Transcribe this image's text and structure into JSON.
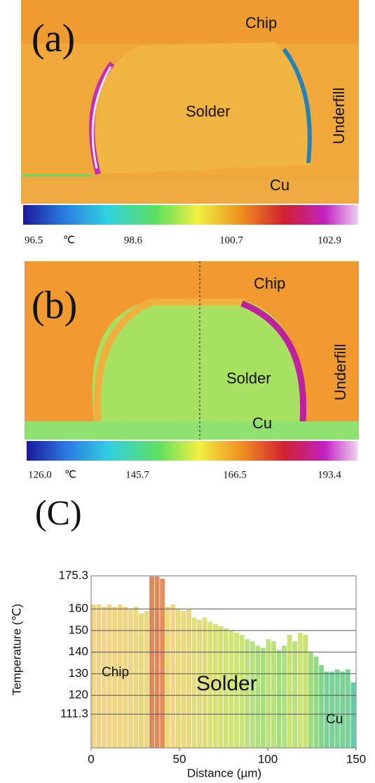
{
  "panels": [
    {
      "label": "(a)",
      "chip": "Chip",
      "solder": "Solder",
      "underfill": "Underfill",
      "cu": "Cu",
      "colorbar": [
        "96.5",
        "℃",
        "98.6",
        "100.7",
        "102.9"
      ]
    },
    {
      "label": "(b)",
      "chip": "Chip",
      "solder": "Solder",
      "underfill": "Underfill",
      "cu": "Cu",
      "colorbar": [
        "126.0",
        "℃",
        "145.7",
        "166.5",
        "193.4"
      ]
    }
  ],
  "chart_data": {
    "type": "bar",
    "title": "(C)",
    "x_label": "Distance (µm)",
    "y_label": "Temperature (℃)",
    "annotations": [
      "Chip",
      "Solder",
      "Cu"
    ],
    "x": [
      0,
      3,
      6,
      9,
      12,
      15,
      18,
      21,
      24,
      27,
      30,
      33,
      36,
      39,
      42,
      45,
      48,
      51,
      54,
      57,
      60,
      63,
      66,
      69,
      72,
      75,
      78,
      81,
      84,
      87,
      90,
      93,
      96,
      99,
      102,
      105,
      108,
      111,
      114,
      117,
      120,
      123,
      126,
      129,
      132,
      135,
      138,
      141,
      144,
      147
    ],
    "values": [
      162,
      162,
      161,
      162,
      161,
      162,
      161,
      160,
      161,
      158,
      159,
      175,
      175,
      174,
      161,
      162,
      160,
      159,
      160,
      156,
      155,
      156,
      154,
      153,
      152,
      151,
      150,
      149,
      148,
      146,
      145,
      143,
      142,
      146,
      145,
      141,
      143,
      148,
      145,
      149,
      148,
      140,
      138,
      134,
      131,
      131,
      132,
      131,
      132,
      126
    ],
    "xlim": [
      0,
      150
    ],
    "xticks": [
      0,
      50,
      100,
      150
    ],
    "ylim": [
      95.7,
      175.3
    ],
    "yticks": [
      111.3,
      120.0,
      130.0,
      140.0,
      150.0,
      160.0,
      175.3
    ],
    "grid": true
  }
}
